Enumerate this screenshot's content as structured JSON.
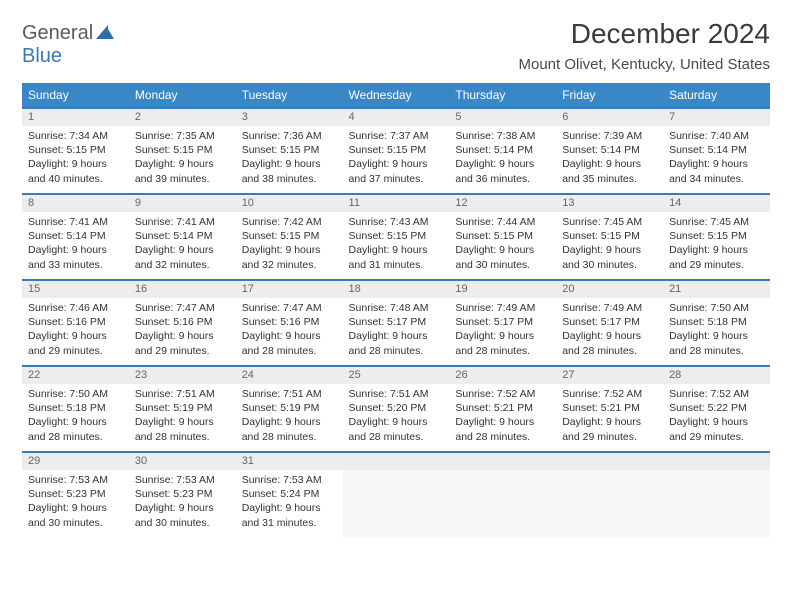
{
  "logo": {
    "part1": "General",
    "part2": "Blue"
  },
  "title": "December 2024",
  "location": "Mount Olivet, Kentucky, United States",
  "colors": {
    "header_bg": "#3a87c8",
    "header_text": "#ffffff",
    "rule": "#3a7ab8",
    "daynum_bg": "#ebedef",
    "logo_gray": "#5a5a5a",
    "logo_blue": "#3a7ab8"
  },
  "weekdays": [
    "Sunday",
    "Monday",
    "Tuesday",
    "Wednesday",
    "Thursday",
    "Friday",
    "Saturday"
  ],
  "weeks": [
    [
      {
        "n": "1",
        "sr": "7:34 AM",
        "ss": "5:15 PM",
        "dl": "9 hours and 40 minutes."
      },
      {
        "n": "2",
        "sr": "7:35 AM",
        "ss": "5:15 PM",
        "dl": "9 hours and 39 minutes."
      },
      {
        "n": "3",
        "sr": "7:36 AM",
        "ss": "5:15 PM",
        "dl": "9 hours and 38 minutes."
      },
      {
        "n": "4",
        "sr": "7:37 AM",
        "ss": "5:15 PM",
        "dl": "9 hours and 37 minutes."
      },
      {
        "n": "5",
        "sr": "7:38 AM",
        "ss": "5:14 PM",
        "dl": "9 hours and 36 minutes."
      },
      {
        "n": "6",
        "sr": "7:39 AM",
        "ss": "5:14 PM",
        "dl": "9 hours and 35 minutes."
      },
      {
        "n": "7",
        "sr": "7:40 AM",
        "ss": "5:14 PM",
        "dl": "9 hours and 34 minutes."
      }
    ],
    [
      {
        "n": "8",
        "sr": "7:41 AM",
        "ss": "5:14 PM",
        "dl": "9 hours and 33 minutes."
      },
      {
        "n": "9",
        "sr": "7:41 AM",
        "ss": "5:14 PM",
        "dl": "9 hours and 32 minutes."
      },
      {
        "n": "10",
        "sr": "7:42 AM",
        "ss": "5:15 PM",
        "dl": "9 hours and 32 minutes."
      },
      {
        "n": "11",
        "sr": "7:43 AM",
        "ss": "5:15 PM",
        "dl": "9 hours and 31 minutes."
      },
      {
        "n": "12",
        "sr": "7:44 AM",
        "ss": "5:15 PM",
        "dl": "9 hours and 30 minutes."
      },
      {
        "n": "13",
        "sr": "7:45 AM",
        "ss": "5:15 PM",
        "dl": "9 hours and 30 minutes."
      },
      {
        "n": "14",
        "sr": "7:45 AM",
        "ss": "5:15 PM",
        "dl": "9 hours and 29 minutes."
      }
    ],
    [
      {
        "n": "15",
        "sr": "7:46 AM",
        "ss": "5:16 PM",
        "dl": "9 hours and 29 minutes."
      },
      {
        "n": "16",
        "sr": "7:47 AM",
        "ss": "5:16 PM",
        "dl": "9 hours and 29 minutes."
      },
      {
        "n": "17",
        "sr": "7:47 AM",
        "ss": "5:16 PM",
        "dl": "9 hours and 28 minutes."
      },
      {
        "n": "18",
        "sr": "7:48 AM",
        "ss": "5:17 PM",
        "dl": "9 hours and 28 minutes."
      },
      {
        "n": "19",
        "sr": "7:49 AM",
        "ss": "5:17 PM",
        "dl": "9 hours and 28 minutes."
      },
      {
        "n": "20",
        "sr": "7:49 AM",
        "ss": "5:17 PM",
        "dl": "9 hours and 28 minutes."
      },
      {
        "n": "21",
        "sr": "7:50 AM",
        "ss": "5:18 PM",
        "dl": "9 hours and 28 minutes."
      }
    ],
    [
      {
        "n": "22",
        "sr": "7:50 AM",
        "ss": "5:18 PM",
        "dl": "9 hours and 28 minutes."
      },
      {
        "n": "23",
        "sr": "7:51 AM",
        "ss": "5:19 PM",
        "dl": "9 hours and 28 minutes."
      },
      {
        "n": "24",
        "sr": "7:51 AM",
        "ss": "5:19 PM",
        "dl": "9 hours and 28 minutes."
      },
      {
        "n": "25",
        "sr": "7:51 AM",
        "ss": "5:20 PM",
        "dl": "9 hours and 28 minutes."
      },
      {
        "n": "26",
        "sr": "7:52 AM",
        "ss": "5:21 PM",
        "dl": "9 hours and 28 minutes."
      },
      {
        "n": "27",
        "sr": "7:52 AM",
        "ss": "5:21 PM",
        "dl": "9 hours and 29 minutes."
      },
      {
        "n": "28",
        "sr": "7:52 AM",
        "ss": "5:22 PM",
        "dl": "9 hours and 29 minutes."
      }
    ],
    [
      {
        "n": "29",
        "sr": "7:53 AM",
        "ss": "5:23 PM",
        "dl": "9 hours and 30 minutes."
      },
      {
        "n": "30",
        "sr": "7:53 AM",
        "ss": "5:23 PM",
        "dl": "9 hours and 30 minutes."
      },
      {
        "n": "31",
        "sr": "7:53 AM",
        "ss": "5:24 PM",
        "dl": "9 hours and 31 minutes."
      },
      null,
      null,
      null,
      null
    ]
  ],
  "labels": {
    "sunrise": "Sunrise:",
    "sunset": "Sunset:",
    "daylight": "Daylight:"
  }
}
